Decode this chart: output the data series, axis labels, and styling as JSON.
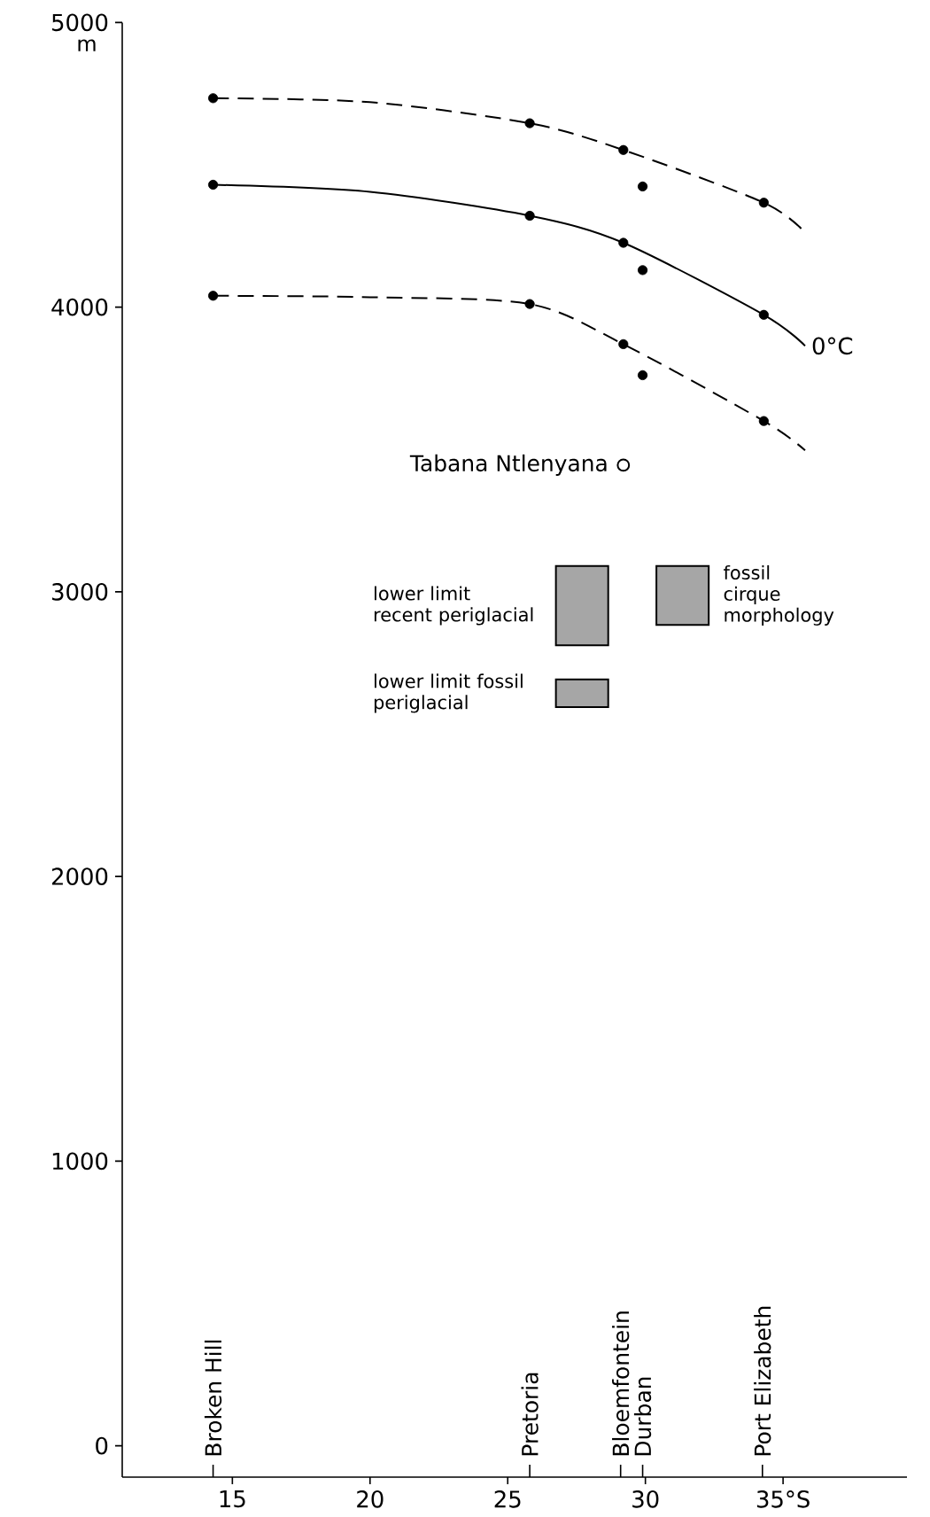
{
  "chart_data": {
    "type": "line",
    "ylabel": "m",
    "xlim": [
      11,
      39.5
    ],
    "xticks": [
      15,
      20,
      25,
      30,
      {
        "value": 35,
        "label": "35°S"
      },
      {
        "value": 14.3,
        "label": null
      },
      {
        "value": 25.8,
        "label": null
      },
      {
        "value": 29.1,
        "label": null
      },
      {
        "value": 29.9,
        "label": null
      },
      {
        "value": 34.25,
        "label": null
      }
    ],
    "ylim": [
      -110,
      5000
    ],
    "yticks": [
      0,
      1000,
      2000,
      3000,
      4000,
      5000
    ],
    "series": [
      {
        "color": "#000000",
        "line_style": "dashed",
        "marker": "none",
        "x": [
          14.3,
          20,
          25.8,
          29.2,
          34.3,
          35.8
        ],
        "values": [
          4734,
          4720,
          4646,
          4552,
          4367,
          4262
        ]
      },
      {
        "name": "0°C",
        "color": "#000000",
        "line_style": "solid",
        "marker": "none",
        "x": [
          14.3,
          20,
          25.8,
          29.2,
          34.3,
          35.8
        ],
        "values": [
          4430,
          4405,
          4321,
          4226,
          3973,
          3864
        ]
      },
      {
        "color": "#000000",
        "line_style": "dashed",
        "marker": "none",
        "x": [
          14.3,
          20,
          25.8,
          29.2,
          34.3,
          35.8
        ],
        "values": [
          4040,
          4035,
          4011,
          3870,
          3600,
          3497
        ]
      },
      {
        "type": "scatter",
        "color": "#000000",
        "marker": "circle",
        "x": [
          14.3,
          25.8,
          29.2,
          29.9,
          34.3,
          14.3,
          25.8,
          29.2,
          29.9,
          34.3,
          14.3,
          25.8,
          29.2,
          29.9,
          34.3
        ],
        "values": [
          4734,
          4646,
          4552,
          4424,
          4367,
          4430,
          4321,
          4226,
          4130,
          3973,
          4040,
          4011,
          3870,
          3761,
          3600
        ]
      },
      {
        "type": "bar",
        "name": "lower limit recent periglacial",
        "color": "#000000",
        "x": [
          27.7
        ],
        "base": [
          2812
        ],
        "values": [
          279
        ]
      },
      {
        "type": "bar",
        "name": "lower limit fossil periglacial",
        "color": "#000000",
        "x": [
          27.7
        ],
        "base": [
          2595
        ],
        "values": [
          97
        ]
      },
      {
        "type": "bar",
        "name": "fossil cirque morphology",
        "color": "#000000",
        "x": [
          31.35
        ],
        "base": [
          2884
        ],
        "values": [
          207
        ]
      }
    ],
    "annotations": [
      {
        "text": "Tabana Ntlenyana",
        "x": 29.2,
        "y": 3445
      },
      "Broken Hill",
      "Pretoria",
      "Bloemfontein",
      "Durban",
      "Port Elizabeth"
    ]
  }
}
